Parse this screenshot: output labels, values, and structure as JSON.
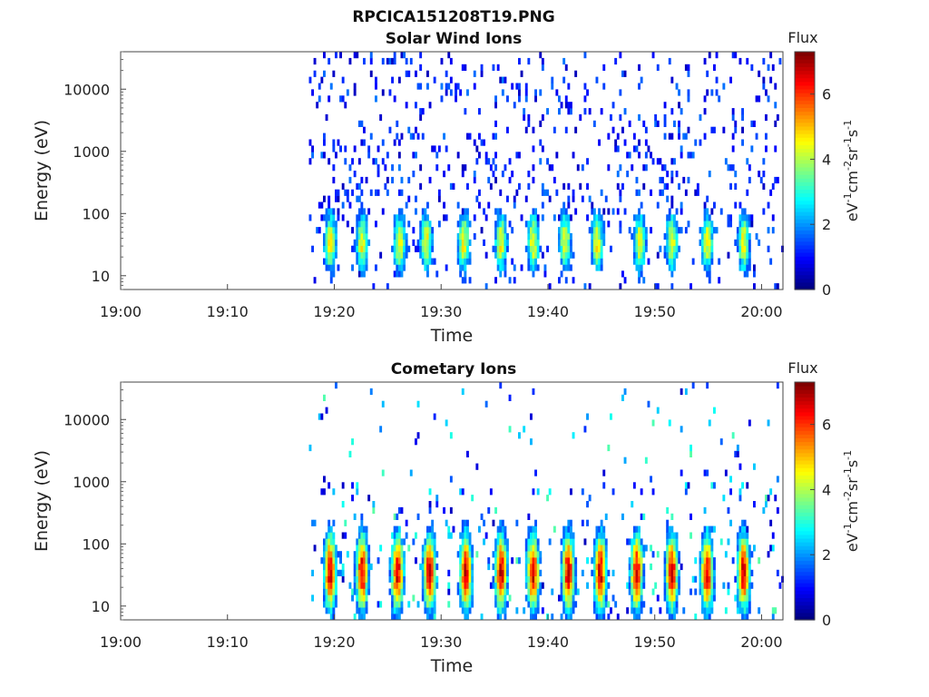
{
  "figure_title": "RPCICA151208T19.PNG",
  "chart_data": [
    {
      "type": "heatmap",
      "title": "Solar Wind Ions",
      "xlabel": "Time",
      "ylabel": "Energy (eV)",
      "y_scale": "log",
      "ylim": [
        6,
        40000
      ],
      "xlim": [
        "19:00",
        "20:02"
      ],
      "x_ticks": [
        "19:00",
        "19:10",
        "19:20",
        "19:30",
        "19:40",
        "19:50",
        "20:00"
      ],
      "y_ticks": [
        "10",
        "100",
        "1000",
        "10000"
      ],
      "data_start": "19:17",
      "data_end": "20:02",
      "colorbar": {
        "title": "Flux",
        "label": "eV-1cm-2sr-1s-1",
        "ticks": [
          "0",
          "2",
          "4",
          "6"
        ],
        "range": [
          0,
          7.3
        ],
        "colormap": "jet"
      },
      "pulses_minutes": [
        19.5,
        22.5,
        26,
        28.5,
        32,
        35.5,
        38.5,
        41.5,
        44.5,
        48.5,
        51.5,
        54.8,
        58.2
      ],
      "peak_energy_ev": 35,
      "peak_flux": 4.6
    },
    {
      "type": "heatmap",
      "title": "Cometary Ions",
      "xlabel": "Time",
      "ylabel": "Energy (eV)",
      "y_scale": "log",
      "ylim": [
        6,
        40000
      ],
      "xlim": [
        "19:00",
        "20:02"
      ],
      "x_ticks": [
        "19:00",
        "19:10",
        "19:20",
        "19:30",
        "19:40",
        "19:50",
        "20:00"
      ],
      "y_ticks": [
        "10",
        "100",
        "1000",
        "10000"
      ],
      "data_start": "19:17",
      "data_end": "20:02",
      "colorbar": {
        "title": "Flux",
        "label": "eV-1cm-2sr-1s-1",
        "ticks": [
          "0",
          "2",
          "4",
          "6"
        ],
        "range": [
          0,
          7.3
        ],
        "colormap": "jet"
      },
      "pulses_minutes": [
        19.5,
        22.5,
        25.8,
        28.8,
        32.2,
        35.5,
        38.5,
        41.8,
        44.8,
        48.2,
        51.5,
        54.8,
        58.2
      ],
      "peak_energy_ev": 35,
      "peak_flux": 6.8
    }
  ]
}
